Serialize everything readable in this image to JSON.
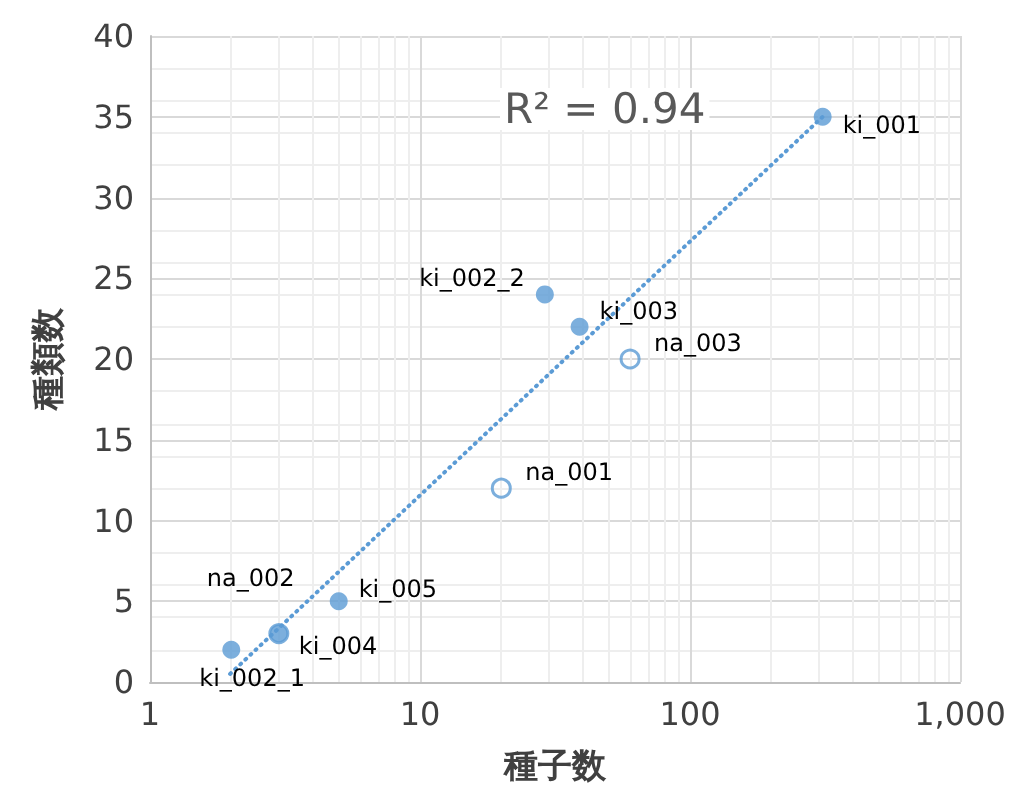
{
  "chart_data": {
    "type": "scatter",
    "xlabel": "種子数",
    "ylabel": "種類数",
    "log": "x",
    "grid": true,
    "marker": "circle",
    "xlim": [
      1,
      1000
    ],
    "xticks": [
      1,
      10,
      100,
      {
        "value": 1000,
        "label": "1,000"
      }
    ],
    "ylim": [
      0,
      40
    ],
    "yticks": [
      0,
      5,
      10,
      15,
      20,
      25,
      30,
      35,
      40
    ],
    "annotations": [
      "R² = 0.94",
      {
        "text": "ki_001",
        "x": 310,
        "y": 35
      },
      {
        "text": "ki_002_2",
        "x": 29,
        "y": 24
      },
      {
        "text": "ki_003",
        "x": 39,
        "y": 22
      },
      {
        "text": "ki_005",
        "x": 5,
        "y": 5
      },
      {
        "text": "ki_004",
        "x": 3,
        "y": 3
      },
      {
        "text": "ki_002_1",
        "x": 2,
        "y": 2
      },
      {
        "text": "na_003",
        "x": 60,
        "y": 20
      },
      {
        "text": "na_001",
        "x": 20,
        "y": 12
      },
      {
        "text": "na_002",
        "x": 3,
        "y": 3
      }
    ],
    "series": [
      {
        "color": "#5b9bd5",
        "x": [
          310,
          29,
          39,
          5,
          3,
          2
        ],
        "values": [
          35,
          24,
          22,
          5,
          3,
          2
        ]
      },
      {
        "color": "#5b9bd5",
        "x": [
          60,
          20,
          3
        ],
        "values": [
          20,
          12,
          3
        ]
      },
      {
        "type": "line",
        "line_style": "dotted",
        "marker": "none",
        "color": "#5b9bd5",
        "x": [
          1.98,
          310
        ],
        "values": [
          0.5,
          35
        ]
      }
    ]
  }
}
